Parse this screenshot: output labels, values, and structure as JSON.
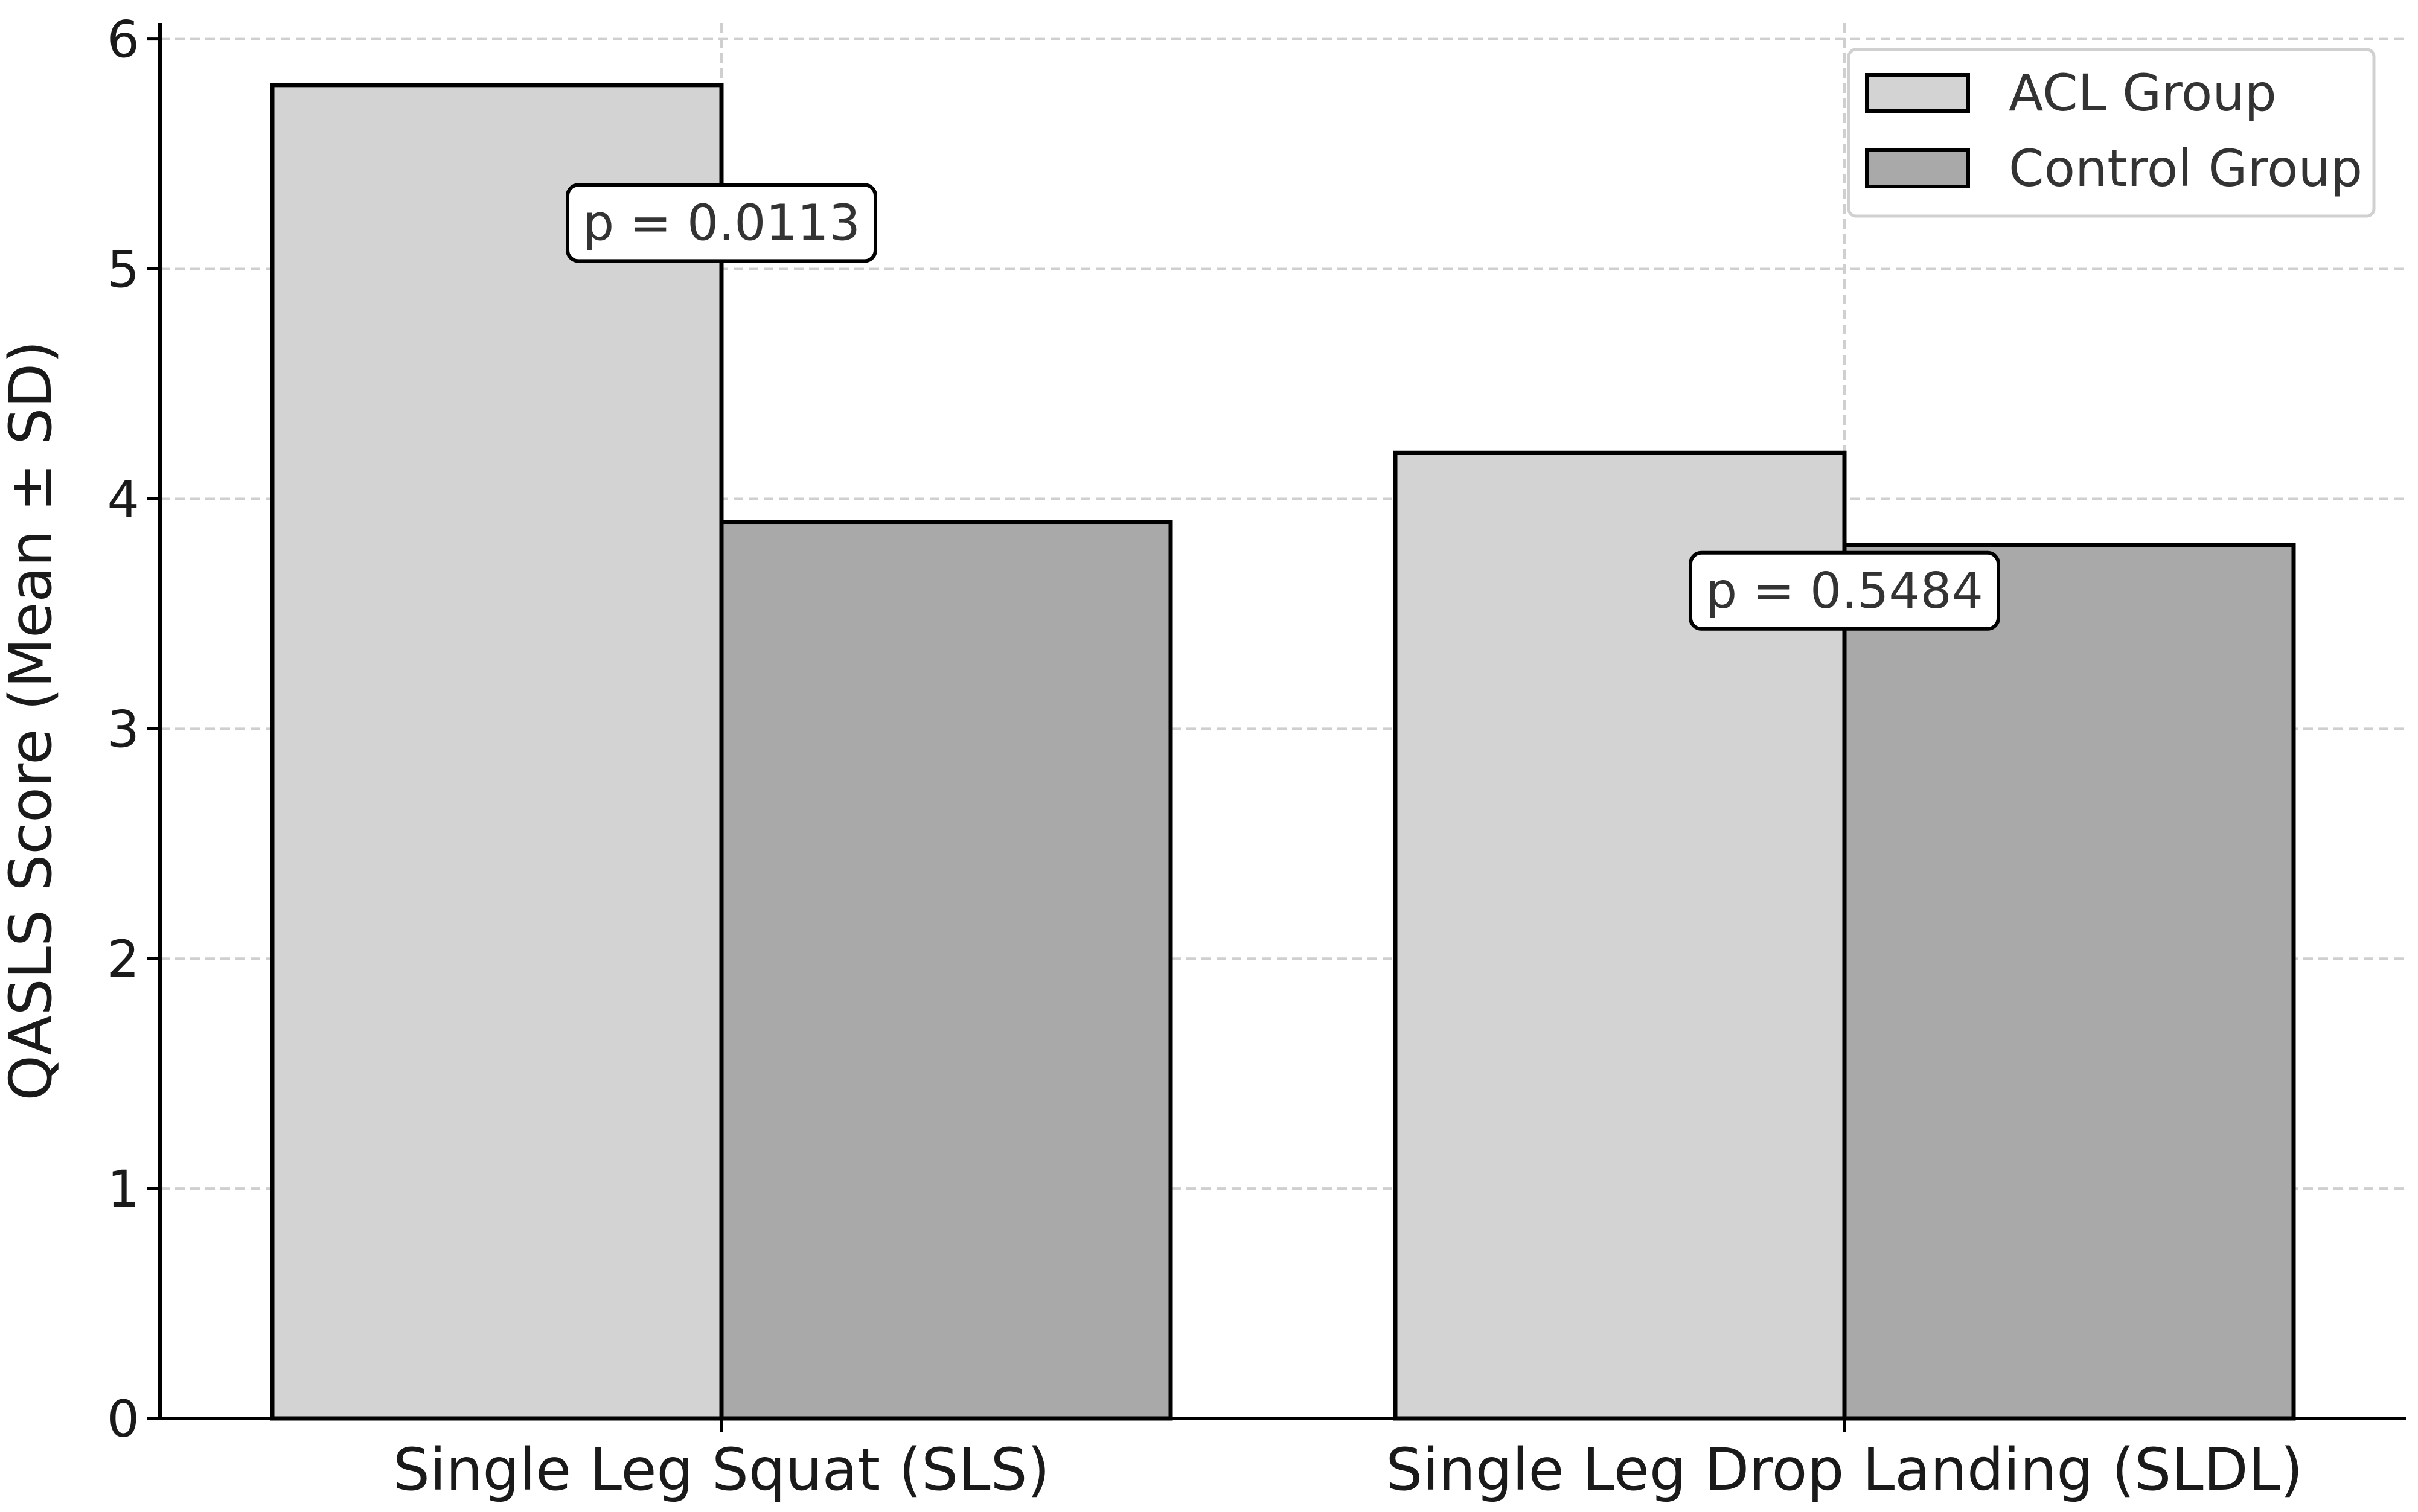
{
  "chart_data": {
    "type": "bar",
    "title": "",
    "xlabel": "",
    "ylabel": "QASLS Score (Mean ± SD)",
    "categories": [
      "Single Leg Squat (SLS)",
      "Single Leg Drop Landing (SLDL)"
    ],
    "series": [
      {
        "name": "ACL Group",
        "values": [
          5.8,
          4.2
        ]
      },
      {
        "name": "Control Group",
        "values": [
          3.9,
          3.8
        ]
      }
    ],
    "ylim": [
      0,
      6.07
    ],
    "yticks": [
      0,
      1,
      2,
      3,
      4,
      5,
      6
    ],
    "grid": true,
    "legend_position": "top-right",
    "annotations": [
      {
        "category": "Single Leg Squat (SLS)",
        "text": "p = 0.0113",
        "y": 5.2
      },
      {
        "category": "Single Leg Drop Landing (SLDL)",
        "text": "p = 0.5484",
        "y": 3.6
      }
    ],
    "colors": {
      "ACL Group": "#d3d3d3",
      "Control Group": "#a9a9a9",
      "edge": "#000000",
      "grid": "#cfcfcf"
    }
  }
}
